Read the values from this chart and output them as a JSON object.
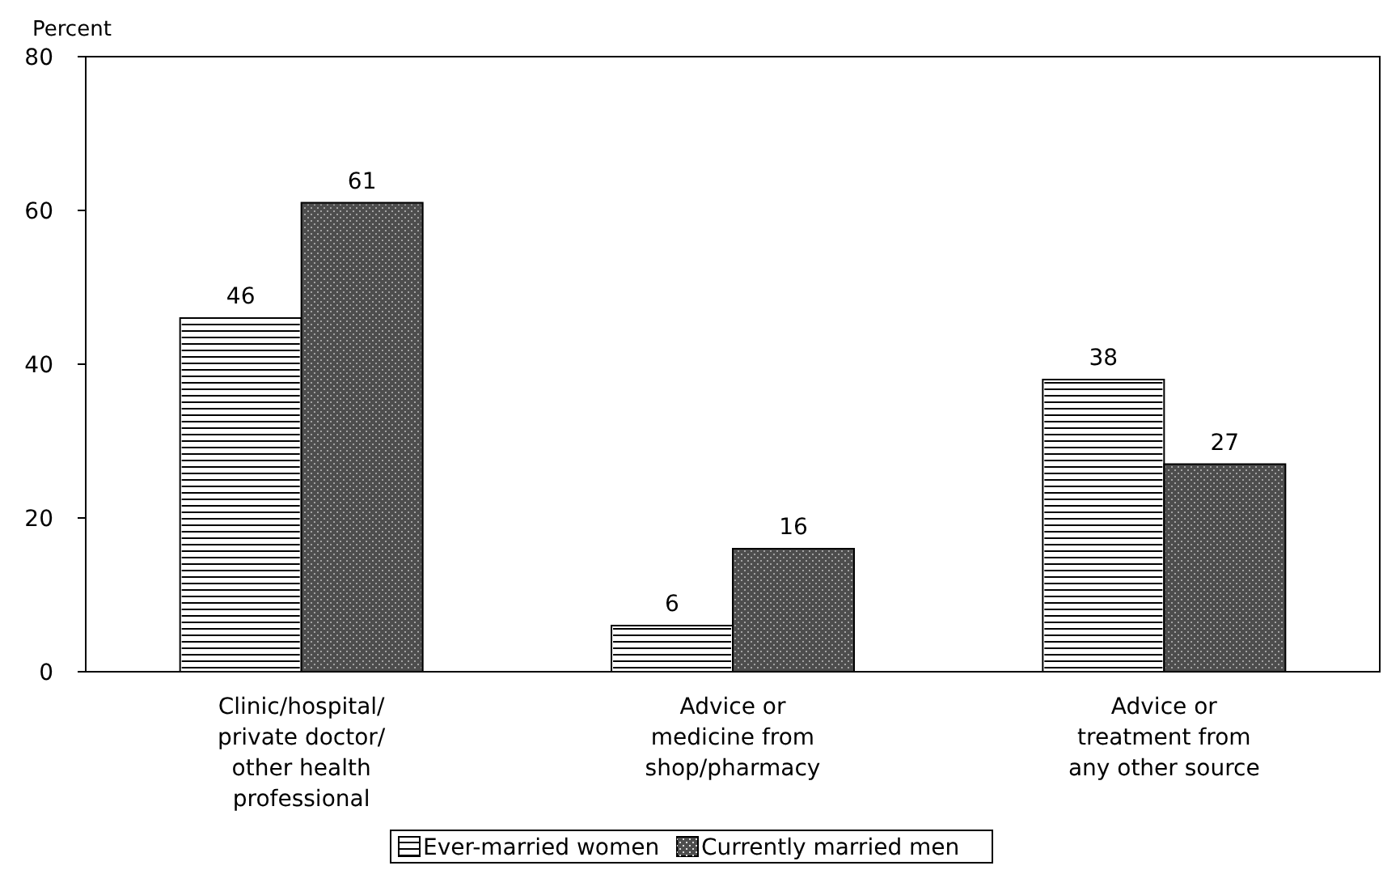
{
  "chart_data": {
    "type": "bar",
    "ylabel": "Percent",
    "categories": [
      "Clinic/hospital/ private doctor/ other health professional",
      "Advice or medicine from shop/pharmacy",
      "Advice or treatment from any other source"
    ],
    "series": [
      {
        "name": "Ever-married women",
        "color": "#ffffff",
        "values": [
          46,
          6,
          38
        ]
      },
      {
        "name": "Currently married men",
        "color": "#4d4d4d",
        "values": [
          61,
          16,
          27
        ]
      }
    ],
    "ylim": [
      0,
      80
    ],
    "yticks": [
      0,
      20,
      40,
      60,
      80
    ],
    "grid": false,
    "data_labels": true,
    "legend": "bottom"
  }
}
